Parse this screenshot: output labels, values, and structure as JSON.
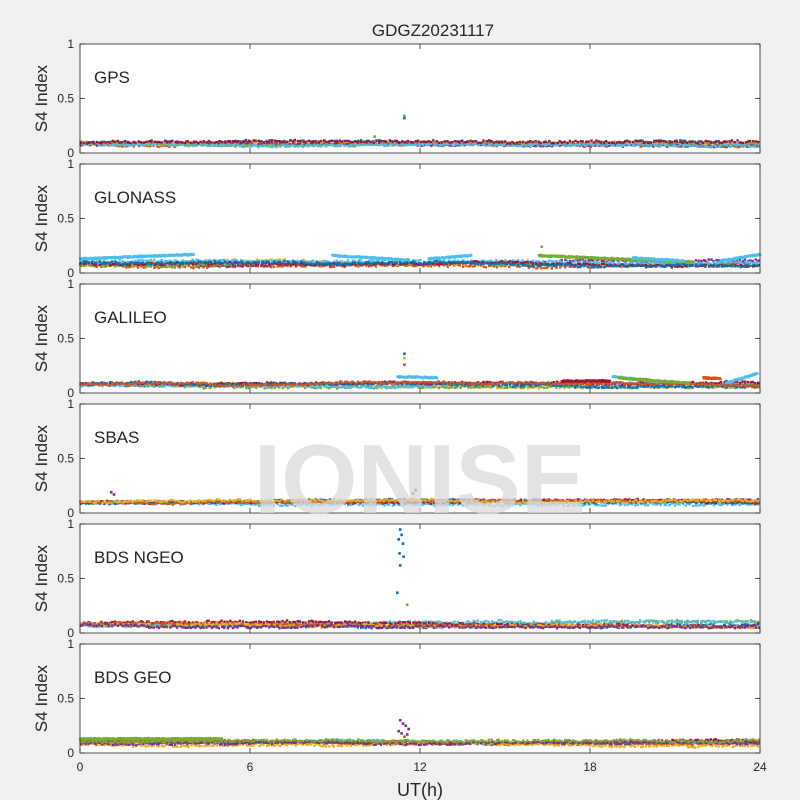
{
  "figure": {
    "title": "GDGZ20231117",
    "watermark": "IONISE",
    "xlabel": "UT(h)",
    "xticks": [
      "0",
      "6",
      "12",
      "18",
      "24"
    ],
    "xlim": [
      0,
      24
    ]
  },
  "colors": {
    "background": "#f0f0f0",
    "axes_bg": "#ffffff",
    "axis_line": "#262626",
    "watermark": "#d9d9d9",
    "series": [
      "#0072BD",
      "#D95319",
      "#EDB120",
      "#7E2F8E",
      "#77AC30",
      "#4DBEEE",
      "#A2142F"
    ]
  },
  "chart_data": [
    {
      "type": "scatter",
      "panel_label": "GPS",
      "ylabel": "S4 Index",
      "ylim": [
        0,
        1
      ],
      "yticks": [
        "0",
        "0.5",
        "1"
      ],
      "baseline": [
        0.06,
        0.11
      ],
      "spikes": [
        {
          "x": 11.45,
          "y": 0.34,
          "series": 4
        },
        {
          "x": 11.45,
          "y": 0.32,
          "series": 0
        },
        {
          "x": 10.4,
          "y": 0.15,
          "series": 4
        }
      ]
    },
    {
      "type": "scatter",
      "panel_label": "GLONASS",
      "ylabel": "S4 Index",
      "ylim": [
        0,
        1
      ],
      "yticks": [
        "0",
        "0.5",
        "1"
      ],
      "baseline": [
        0.05,
        0.12
      ],
      "tracks": [
        {
          "series": 5,
          "x0": 0.0,
          "x1": 3.0,
          "y0": 0.13,
          "y1": 0.16
        },
        {
          "series": 5,
          "x0": 3.0,
          "x1": 4.0,
          "y0": 0.16,
          "y1": 0.17
        },
        {
          "series": 5,
          "x0": 8.9,
          "x1": 11.6,
          "y0": 0.16,
          "y1": 0.12
        },
        {
          "series": 5,
          "x0": 12.3,
          "x1": 13.8,
          "y0": 0.13,
          "y1": 0.16
        },
        {
          "series": 4,
          "x0": 16.2,
          "x1": 21.6,
          "y0": 0.16,
          "y1": 0.1
        },
        {
          "series": 5,
          "x0": 19.5,
          "x1": 21.3,
          "y0": 0.14,
          "y1": 0.11
        },
        {
          "series": 5,
          "x0": 22.6,
          "x1": 24.0,
          "y0": 0.11,
          "y1": 0.17
        }
      ],
      "spikes": [
        {
          "x": 16.3,
          "y": 0.24,
          "series": 4
        }
      ]
    },
    {
      "type": "scatter",
      "panel_label": "GALILEO",
      "ylabel": "S4 Index",
      "ylim": [
        0,
        1
      ],
      "yticks": [
        "0",
        "0.5",
        "1"
      ],
      "baseline": [
        0.05,
        0.1
      ],
      "tracks": [
        {
          "series": 5,
          "x0": 11.2,
          "x1": 12.6,
          "y0": 0.15,
          "y1": 0.14
        },
        {
          "series": 5,
          "x0": 18.8,
          "x1": 20.5,
          "y0": 0.15,
          "y1": 0.1
        },
        {
          "series": 4,
          "x0": 19.0,
          "x1": 21.5,
          "y0": 0.14,
          "y1": 0.09
        },
        {
          "series": 5,
          "x0": 22.8,
          "x1": 23.9,
          "y0": 0.09,
          "y1": 0.18
        },
        {
          "series": 6,
          "x0": 17.0,
          "x1": 18.7,
          "y0": 0.11,
          "y1": 0.11
        },
        {
          "series": 1,
          "x0": 22.0,
          "x1": 22.6,
          "y0": 0.14,
          "y1": 0.13
        }
      ],
      "spikes": [
        {
          "x": 11.45,
          "y": 0.36,
          "series": 0
        },
        {
          "x": 11.45,
          "y": 0.32,
          "series": 2
        },
        {
          "x": 11.45,
          "y": 0.26,
          "series": 1
        }
      ]
    },
    {
      "type": "scatter",
      "panel_label": "SBAS",
      "ylabel": "S4 Index",
      "ylim": [
        0,
        1
      ],
      "yticks": [
        "0",
        "0.5",
        "1"
      ],
      "baseline": [
        0.07,
        0.12
      ],
      "spikes": [
        {
          "x": 1.1,
          "y": 0.19,
          "series": 3
        },
        {
          "x": 1.2,
          "y": 0.17,
          "series": 3
        },
        {
          "x": 11.85,
          "y": 0.21,
          "series": 3
        },
        {
          "x": 11.75,
          "y": 0.18,
          "series": 3
        }
      ]
    },
    {
      "type": "scatter",
      "panel_label": "BDS NGEO",
      "ylabel": "S4 Index",
      "ylim": [
        0,
        1
      ],
      "yticks": [
        "0",
        "0.5",
        "1"
      ],
      "baseline": [
        0.05,
        0.11
      ],
      "spikes": [
        {
          "x": 11.3,
          "y": 0.95,
          "series": 0
        },
        {
          "x": 11.35,
          "y": 0.9,
          "series": 0
        },
        {
          "x": 11.25,
          "y": 0.86,
          "series": 0
        },
        {
          "x": 11.4,
          "y": 0.82,
          "series": 0
        },
        {
          "x": 11.28,
          "y": 0.73,
          "series": 0
        },
        {
          "x": 11.42,
          "y": 0.7,
          "series": 0
        },
        {
          "x": 11.3,
          "y": 0.62,
          "series": 0
        },
        {
          "x": 11.2,
          "y": 0.37,
          "series": 0
        },
        {
          "x": 11.55,
          "y": 0.26,
          "series": 4
        }
      ]
    },
    {
      "type": "scatter",
      "panel_label": "BDS GEO",
      "ylabel": "S4 Index",
      "ylim": [
        0,
        1
      ],
      "yticks": [
        "0",
        "0.5",
        "1"
      ],
      "baseline": [
        0.06,
        0.12
      ],
      "tracks": [
        {
          "series": 4,
          "x0": 0.0,
          "x1": 5.0,
          "y0": 0.13,
          "y1": 0.13
        }
      ],
      "spikes": [
        {
          "x": 11.3,
          "y": 0.3,
          "series": 3
        },
        {
          "x": 11.4,
          "y": 0.27,
          "series": 3
        },
        {
          "x": 11.5,
          "y": 0.25,
          "series": 3
        },
        {
          "x": 11.6,
          "y": 0.22,
          "series": 3
        },
        {
          "x": 11.25,
          "y": 0.2,
          "series": 3
        },
        {
          "x": 11.35,
          "y": 0.18,
          "series": 3
        },
        {
          "x": 11.55,
          "y": 0.17,
          "series": 3
        },
        {
          "x": 11.45,
          "y": 0.15,
          "series": 1
        }
      ]
    }
  ]
}
